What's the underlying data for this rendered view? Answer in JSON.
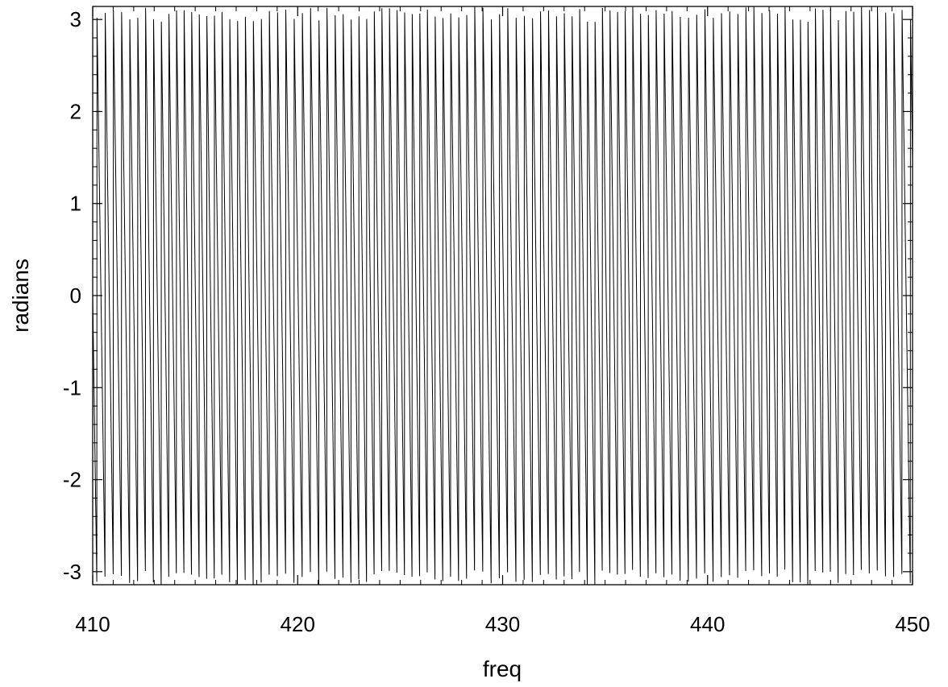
{
  "chart_data": {
    "type": "line",
    "title": "",
    "xlabel": "freq",
    "ylabel": "radians",
    "xlim": [
      410,
      450
    ],
    "ylim": [
      -3.14159,
      3.14159
    ],
    "x_ticks": [
      410,
      420,
      430,
      440,
      450
    ],
    "x_tick_labels": [
      "410",
      "420",
      "430",
      "440",
      "450"
    ],
    "y_ticks": [
      -3,
      -2,
      -1,
      0,
      1,
      2,
      3
    ],
    "y_tick_labels": [
      "-3",
      "-2",
      "-1",
      "0",
      "1",
      "2",
      "3"
    ],
    "x_minor_step": 1,
    "y_minor_step": 0.2,
    "grid": false,
    "line_color": "#000000",
    "series": [
      {
        "description_free_params": true,
        "x_start": 410,
        "x_end": 450,
        "x_step": 0.01,
        "phase_slope_rad_per_unit": -16.3,
        "phase_modulation_period": 10.0,
        "phase_modulation_amplitude": 1.2,
        "wrap_range": [
          -3.14159,
          3.14159
        ]
      }
    ]
  }
}
